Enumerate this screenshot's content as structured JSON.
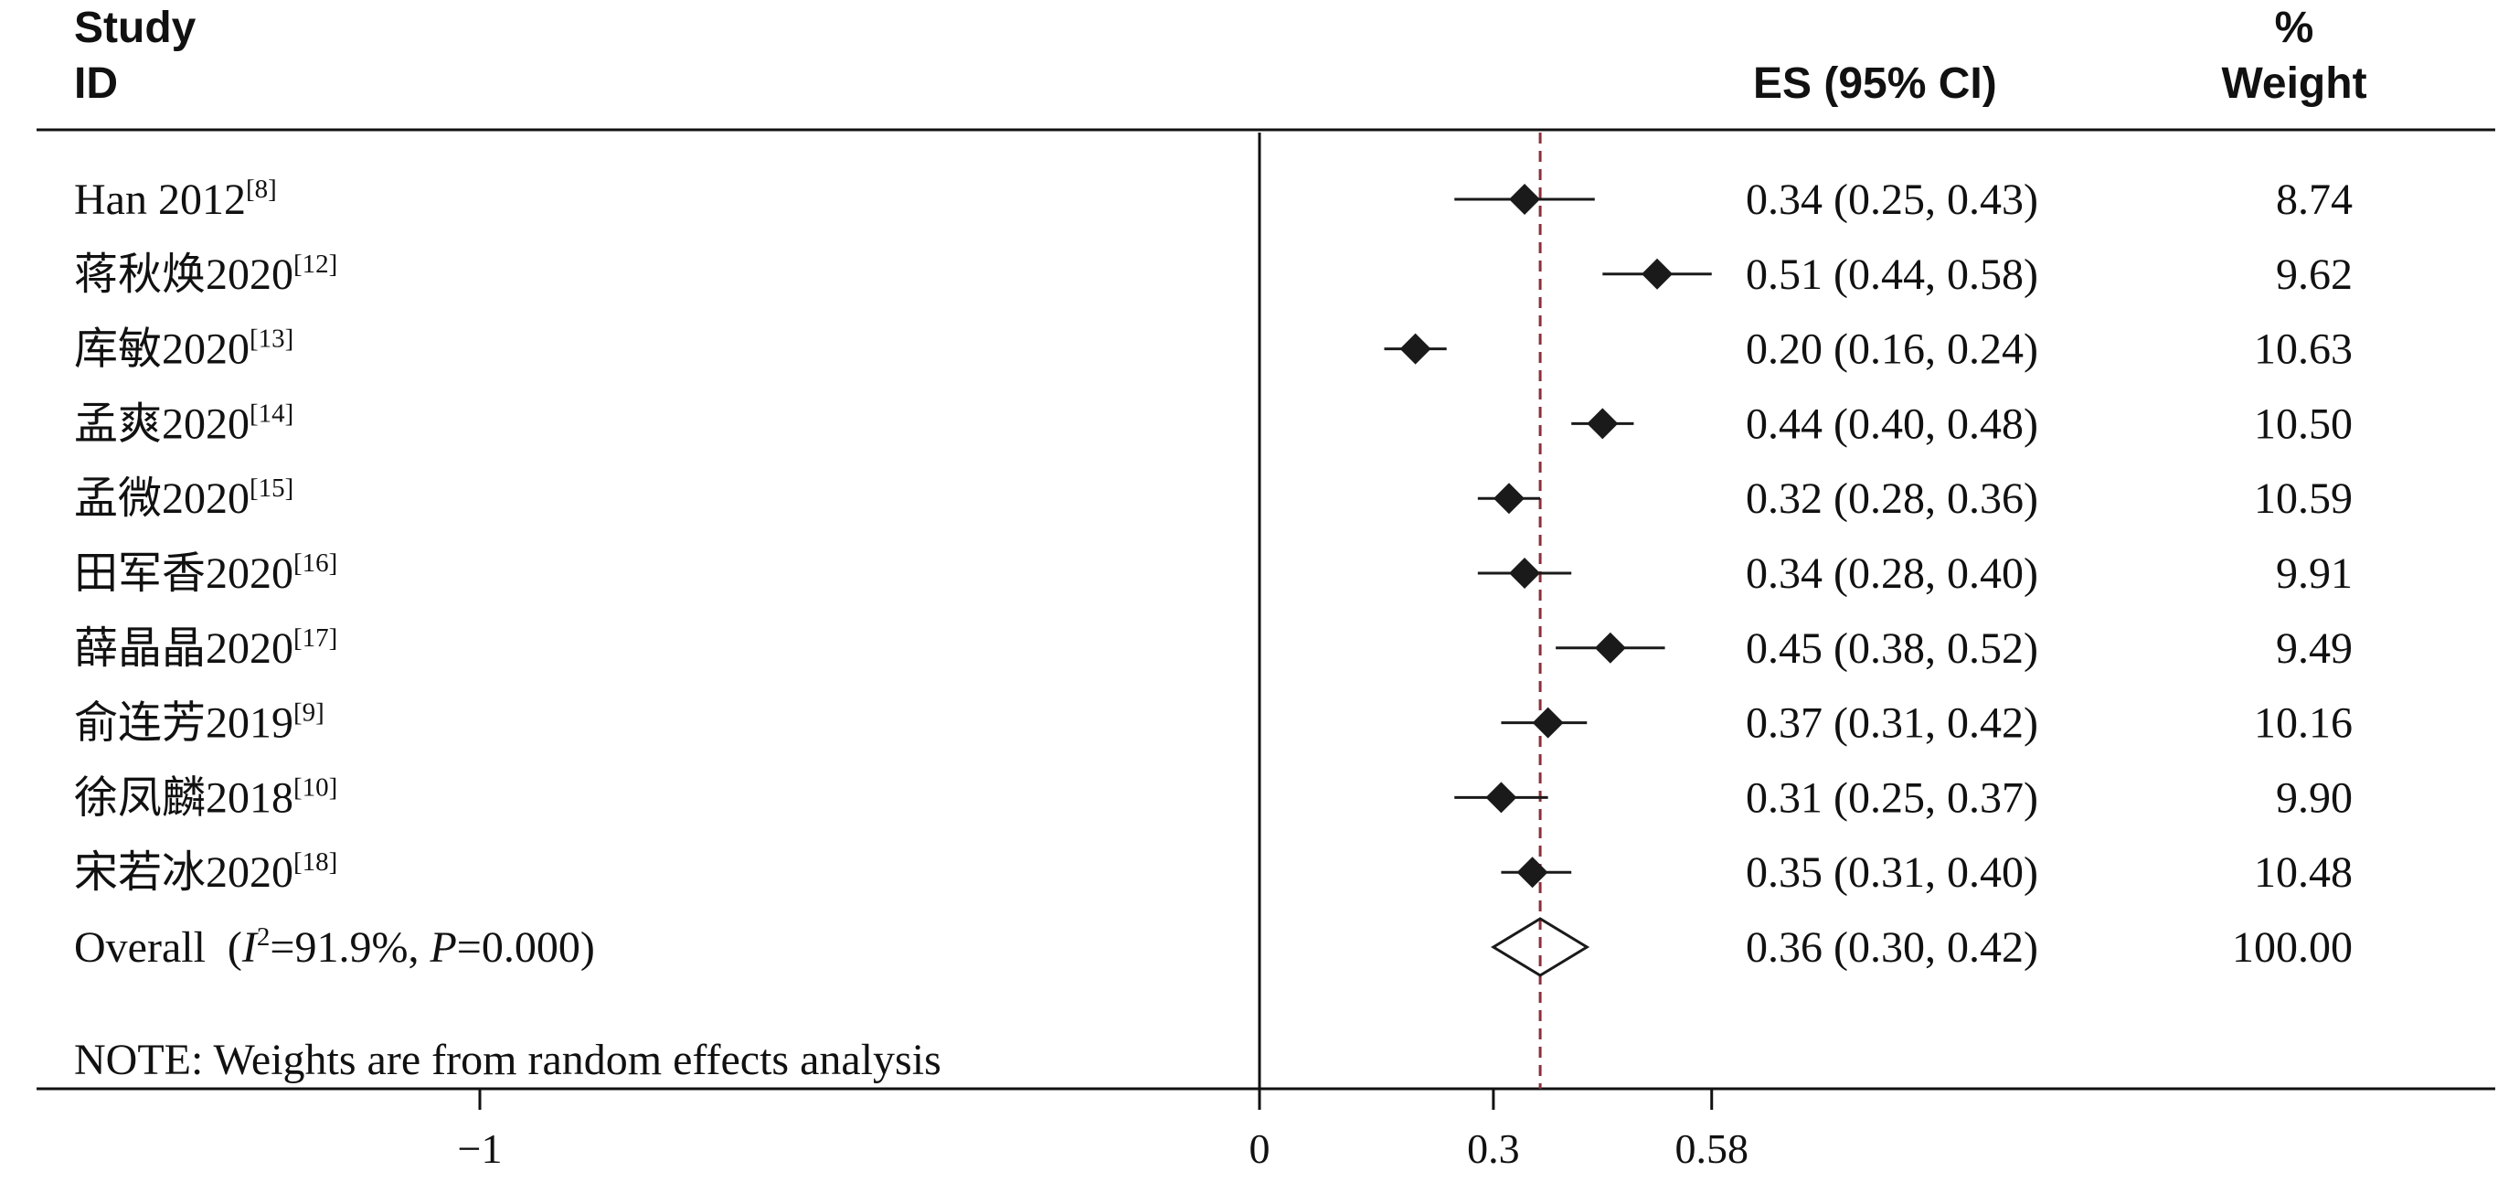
{
  "header": {
    "study_line1": "Study",
    "study_line2": "ID",
    "es": "ES (95% CI)",
    "weight_line1": "%",
    "weight_line2": "Weight"
  },
  "note": "NOTE: Weights are from random effects analysis",
  "colors": {
    "reference_line": "#8b2f3a",
    "marker": "#1a1a1a",
    "axis": "#111111"
  },
  "chart_data": {
    "type": "forest",
    "x_ticks": [
      {
        "value": -1,
        "label": "−1"
      },
      {
        "value": 0,
        "label": "0"
      },
      {
        "value": 0.3,
        "label": "0.3"
      },
      {
        "value": 0.58,
        "label": "0.58"
      }
    ],
    "null_line": 0,
    "reference_line": 0.36,
    "studies": [
      {
        "name": "Han 2012",
        "ref": "[8]",
        "es": 0.34,
        "lo": 0.25,
        "hi": 0.43,
        "es_text": "0.34 (0.25, 0.43)",
        "weight": "8.74"
      },
      {
        "name": "蒋秋焕2020",
        "ref": "[12]",
        "es": 0.51,
        "lo": 0.44,
        "hi": 0.58,
        "es_text": "0.51 (0.44, 0.58)",
        "weight": "9.62"
      },
      {
        "name": "库敏2020",
        "ref": "[13]",
        "es": 0.2,
        "lo": 0.16,
        "hi": 0.24,
        "es_text": "0.20 (0.16, 0.24)",
        "weight": "10.63"
      },
      {
        "name": "孟爽2020",
        "ref": "[14]",
        "es": 0.44,
        "lo": 0.4,
        "hi": 0.48,
        "es_text": "0.44 (0.40, 0.48)",
        "weight": "10.50"
      },
      {
        "name": "孟微2020",
        "ref": "[15]",
        "es": 0.32,
        "lo": 0.28,
        "hi": 0.36,
        "es_text": "0.32 (0.28, 0.36)",
        "weight": "10.59"
      },
      {
        "name": "田军香2020",
        "ref": "[16]",
        "es": 0.34,
        "lo": 0.28,
        "hi": 0.4,
        "es_text": "0.34 (0.28, 0.40)",
        "weight": "9.91"
      },
      {
        "name": "薛晶晶2020",
        "ref": "[17]",
        "es": 0.45,
        "lo": 0.38,
        "hi": 0.52,
        "es_text": "0.45 (0.38, 0.52)",
        "weight": "9.49"
      },
      {
        "name": "俞连芳2019",
        "ref": "[9]",
        "es": 0.37,
        "lo": 0.31,
        "hi": 0.42,
        "es_text": "0.37 (0.31, 0.42)",
        "weight": "10.16"
      },
      {
        "name": "徐凤麟2018",
        "ref": "[10]",
        "es": 0.31,
        "lo": 0.25,
        "hi": 0.37,
        "es_text": "0.31 (0.25, 0.37)",
        "weight": "9.90"
      },
      {
        "name": "宋若冰2020",
        "ref": "[18]",
        "es": 0.35,
        "lo": 0.31,
        "hi": 0.4,
        "es_text": "0.35 (0.31, 0.40)",
        "weight": "10.48"
      }
    ],
    "overall": {
      "label_prefix": "Overall (",
      "i2_symbol": "I",
      "i2_sup": "2",
      "i2_value": "=91.9%, ",
      "p_symbol": "P",
      "p_value": "=0.000)",
      "es": 0.36,
      "lo": 0.3,
      "hi": 0.42,
      "es_text": "0.36 (0.30, 0.42)",
      "weight": "100.00"
    }
  }
}
